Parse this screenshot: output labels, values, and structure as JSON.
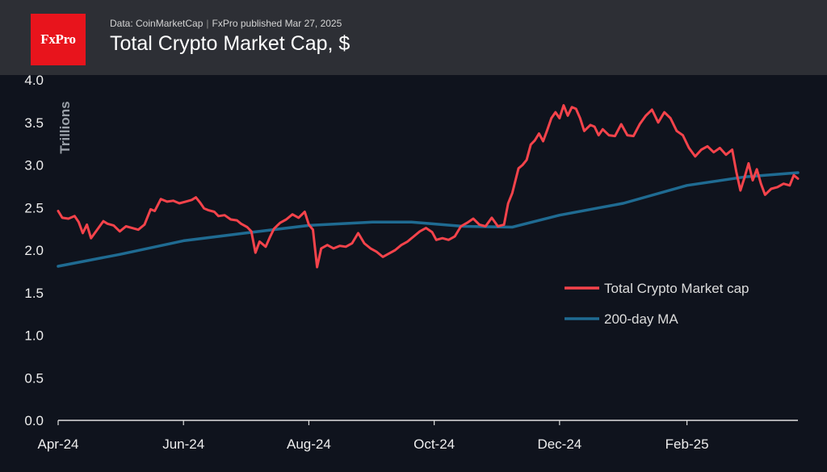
{
  "header": {
    "logo_text": "FxPro",
    "source": "Data: CoinMarketCap",
    "published": "FxPro published Mar 27, 2025",
    "title": "Total Crypto Market Cap, $"
  },
  "colors": {
    "background": "#0f131d",
    "header": "#2d2f35",
    "logo": "#e8141c",
    "market_cap": "#f5434b",
    "ma": "#1f6b92"
  },
  "chart_data": {
    "type": "line",
    "title": "Total Crypto Market Cap, $",
    "ylabel": "Trillions",
    "xlabel": "",
    "ylim": [
      0,
      4.0
    ],
    "xlim": [
      "2024-04-01",
      "2025-03-27"
    ],
    "yticks": [
      "0.0",
      "0.5",
      "1.0",
      "1.5",
      "2.0",
      "2.5",
      "3.0",
      "3.5",
      "4.0"
    ],
    "xticks": [
      {
        "label": "Apr-24",
        "date": "2024-04-01"
      },
      {
        "label": "Jun-24",
        "date": "2024-06-01"
      },
      {
        "label": "Aug-24",
        "date": "2024-08-01"
      },
      {
        "label": "Oct-24",
        "date": "2024-10-01"
      },
      {
        "label": "Dec-24",
        "date": "2024-12-01"
      },
      {
        "label": "Feb-25",
        "date": "2025-02-01"
      }
    ],
    "grid": false,
    "legend_position": "right-center",
    "series": [
      {
        "name": "Total Crypto Market cap",
        "color": "#f5434b",
        "points": [
          [
            "2024-04-01",
            2.46
          ],
          [
            "2024-04-03",
            2.38
          ],
          [
            "2024-04-06",
            2.37
          ],
          [
            "2024-04-09",
            2.4
          ],
          [
            "2024-04-11",
            2.33
          ],
          [
            "2024-04-13",
            2.2
          ],
          [
            "2024-04-15",
            2.3
          ],
          [
            "2024-04-17",
            2.14
          ],
          [
            "2024-04-20",
            2.24
          ],
          [
            "2024-04-23",
            2.34
          ],
          [
            "2024-04-25",
            2.31
          ],
          [
            "2024-04-28",
            2.29
          ],
          [
            "2024-05-01",
            2.22
          ],
          [
            "2024-05-04",
            2.28
          ],
          [
            "2024-05-07",
            2.26
          ],
          [
            "2024-05-10",
            2.24
          ],
          [
            "2024-05-13",
            2.3
          ],
          [
            "2024-05-16",
            2.48
          ],
          [
            "2024-05-18",
            2.46
          ],
          [
            "2024-05-21",
            2.6
          ],
          [
            "2024-05-24",
            2.57
          ],
          [
            "2024-05-27",
            2.58
          ],
          [
            "2024-05-30",
            2.55
          ],
          [
            "2024-06-02",
            2.57
          ],
          [
            "2024-06-05",
            2.59
          ],
          [
            "2024-06-07",
            2.62
          ],
          [
            "2024-06-09",
            2.56
          ],
          [
            "2024-06-11",
            2.49
          ],
          [
            "2024-06-13",
            2.47
          ],
          [
            "2024-06-16",
            2.45
          ],
          [
            "2024-06-18",
            2.4
          ],
          [
            "2024-06-21",
            2.41
          ],
          [
            "2024-06-24",
            2.36
          ],
          [
            "2024-06-27",
            2.35
          ],
          [
            "2024-06-29",
            2.31
          ],
          [
            "2024-07-02",
            2.27
          ],
          [
            "2024-07-04",
            2.22
          ],
          [
            "2024-07-06",
            1.97
          ],
          [
            "2024-07-08",
            2.1
          ],
          [
            "2024-07-11",
            2.04
          ],
          [
            "2024-07-13",
            2.15
          ],
          [
            "2024-07-15",
            2.25
          ],
          [
            "2024-07-18",
            2.32
          ],
          [
            "2024-07-21",
            2.36
          ],
          [
            "2024-07-24",
            2.42
          ],
          [
            "2024-07-27",
            2.38
          ],
          [
            "2024-07-30",
            2.45
          ],
          [
            "2024-08-01",
            2.3
          ],
          [
            "2024-08-03",
            2.24
          ],
          [
            "2024-08-05",
            1.8
          ],
          [
            "2024-08-07",
            2.02
          ],
          [
            "2024-08-10",
            2.06
          ],
          [
            "2024-08-13",
            2.02
          ],
          [
            "2024-08-16",
            2.05
          ],
          [
            "2024-08-19",
            2.04
          ],
          [
            "2024-08-22",
            2.08
          ],
          [
            "2024-08-25",
            2.2
          ],
          [
            "2024-08-28",
            2.08
          ],
          [
            "2024-08-31",
            2.02
          ],
          [
            "2024-09-03",
            1.98
          ],
          [
            "2024-09-06",
            1.92
          ],
          [
            "2024-09-09",
            1.96
          ],
          [
            "2024-09-12",
            2.0
          ],
          [
            "2024-09-15",
            2.06
          ],
          [
            "2024-09-18",
            2.1
          ],
          [
            "2024-09-21",
            2.16
          ],
          [
            "2024-09-24",
            2.22
          ],
          [
            "2024-09-27",
            2.26
          ],
          [
            "2024-09-30",
            2.21
          ],
          [
            "2024-10-02",
            2.12
          ],
          [
            "2024-10-05",
            2.14
          ],
          [
            "2024-10-08",
            2.12
          ],
          [
            "2024-10-11",
            2.16
          ],
          [
            "2024-10-14",
            2.28
          ],
          [
            "2024-10-17",
            2.32
          ],
          [
            "2024-10-20",
            2.37
          ],
          [
            "2024-10-23",
            2.3
          ],
          [
            "2024-10-26",
            2.28
          ],
          [
            "2024-10-29",
            2.38
          ],
          [
            "2024-11-01",
            2.28
          ],
          [
            "2024-11-04",
            2.3
          ],
          [
            "2024-11-06",
            2.55
          ],
          [
            "2024-11-08",
            2.67
          ],
          [
            "2024-11-11",
            2.96
          ],
          [
            "2024-11-13",
            3.0
          ],
          [
            "2024-11-15",
            3.06
          ],
          [
            "2024-11-17",
            3.24
          ],
          [
            "2024-11-19",
            3.29
          ],
          [
            "2024-11-21",
            3.37
          ],
          [
            "2024-11-23",
            3.28
          ],
          [
            "2024-11-25",
            3.41
          ],
          [
            "2024-11-27",
            3.55
          ],
          [
            "2024-11-29",
            3.62
          ],
          [
            "2024-12-01",
            3.55
          ],
          [
            "2024-12-03",
            3.7
          ],
          [
            "2024-12-05",
            3.58
          ],
          [
            "2024-12-07",
            3.68
          ],
          [
            "2024-12-09",
            3.66
          ],
          [
            "2024-12-11",
            3.55
          ],
          [
            "2024-12-13",
            3.4
          ],
          [
            "2024-12-16",
            3.47
          ],
          [
            "2024-12-18",
            3.45
          ],
          [
            "2024-12-20",
            3.35
          ],
          [
            "2024-12-22",
            3.42
          ],
          [
            "2024-12-25",
            3.35
          ],
          [
            "2024-12-28",
            3.34
          ],
          [
            "2024-12-31",
            3.48
          ],
          [
            "2025-01-03",
            3.35
          ],
          [
            "2025-01-06",
            3.34
          ],
          [
            "2025-01-09",
            3.48
          ],
          [
            "2025-01-12",
            3.58
          ],
          [
            "2025-01-15",
            3.65
          ],
          [
            "2025-01-18",
            3.5
          ],
          [
            "2025-01-21",
            3.62
          ],
          [
            "2025-01-24",
            3.55
          ],
          [
            "2025-01-27",
            3.4
          ],
          [
            "2025-01-30",
            3.35
          ],
          [
            "2025-02-02",
            3.2
          ],
          [
            "2025-02-05",
            3.1
          ],
          [
            "2025-02-08",
            3.18
          ],
          [
            "2025-02-11",
            3.22
          ],
          [
            "2025-02-14",
            3.15
          ],
          [
            "2025-02-17",
            3.2
          ],
          [
            "2025-02-20",
            3.12
          ],
          [
            "2025-02-23",
            3.18
          ],
          [
            "2025-02-25",
            2.92
          ],
          [
            "2025-02-27",
            2.7
          ],
          [
            "2025-03-01",
            2.85
          ],
          [
            "2025-03-03",
            3.02
          ],
          [
            "2025-03-05",
            2.82
          ],
          [
            "2025-03-07",
            2.95
          ],
          [
            "2025-03-09",
            2.78
          ],
          [
            "2025-03-11",
            2.65
          ],
          [
            "2025-03-14",
            2.72
          ],
          [
            "2025-03-17",
            2.74
          ],
          [
            "2025-03-20",
            2.78
          ],
          [
            "2025-03-23",
            2.76
          ],
          [
            "2025-03-25",
            2.88
          ],
          [
            "2025-03-27",
            2.84
          ]
        ]
      },
      {
        "name": "200-day MA",
        "color": "#1f6b92",
        "points": [
          [
            "2024-04-01",
            1.81
          ],
          [
            "2024-05-01",
            1.95
          ],
          [
            "2024-06-01",
            2.11
          ],
          [
            "2024-07-01",
            2.2
          ],
          [
            "2024-08-01",
            2.29
          ],
          [
            "2024-09-01",
            2.33
          ],
          [
            "2024-09-20",
            2.33
          ],
          [
            "2024-10-15",
            2.28
          ],
          [
            "2024-11-08",
            2.27
          ],
          [
            "2024-12-01",
            2.41
          ],
          [
            "2025-01-01",
            2.55
          ],
          [
            "2025-02-01",
            2.76
          ],
          [
            "2025-03-01",
            2.86
          ],
          [
            "2025-03-27",
            2.91
          ]
        ]
      }
    ]
  }
}
